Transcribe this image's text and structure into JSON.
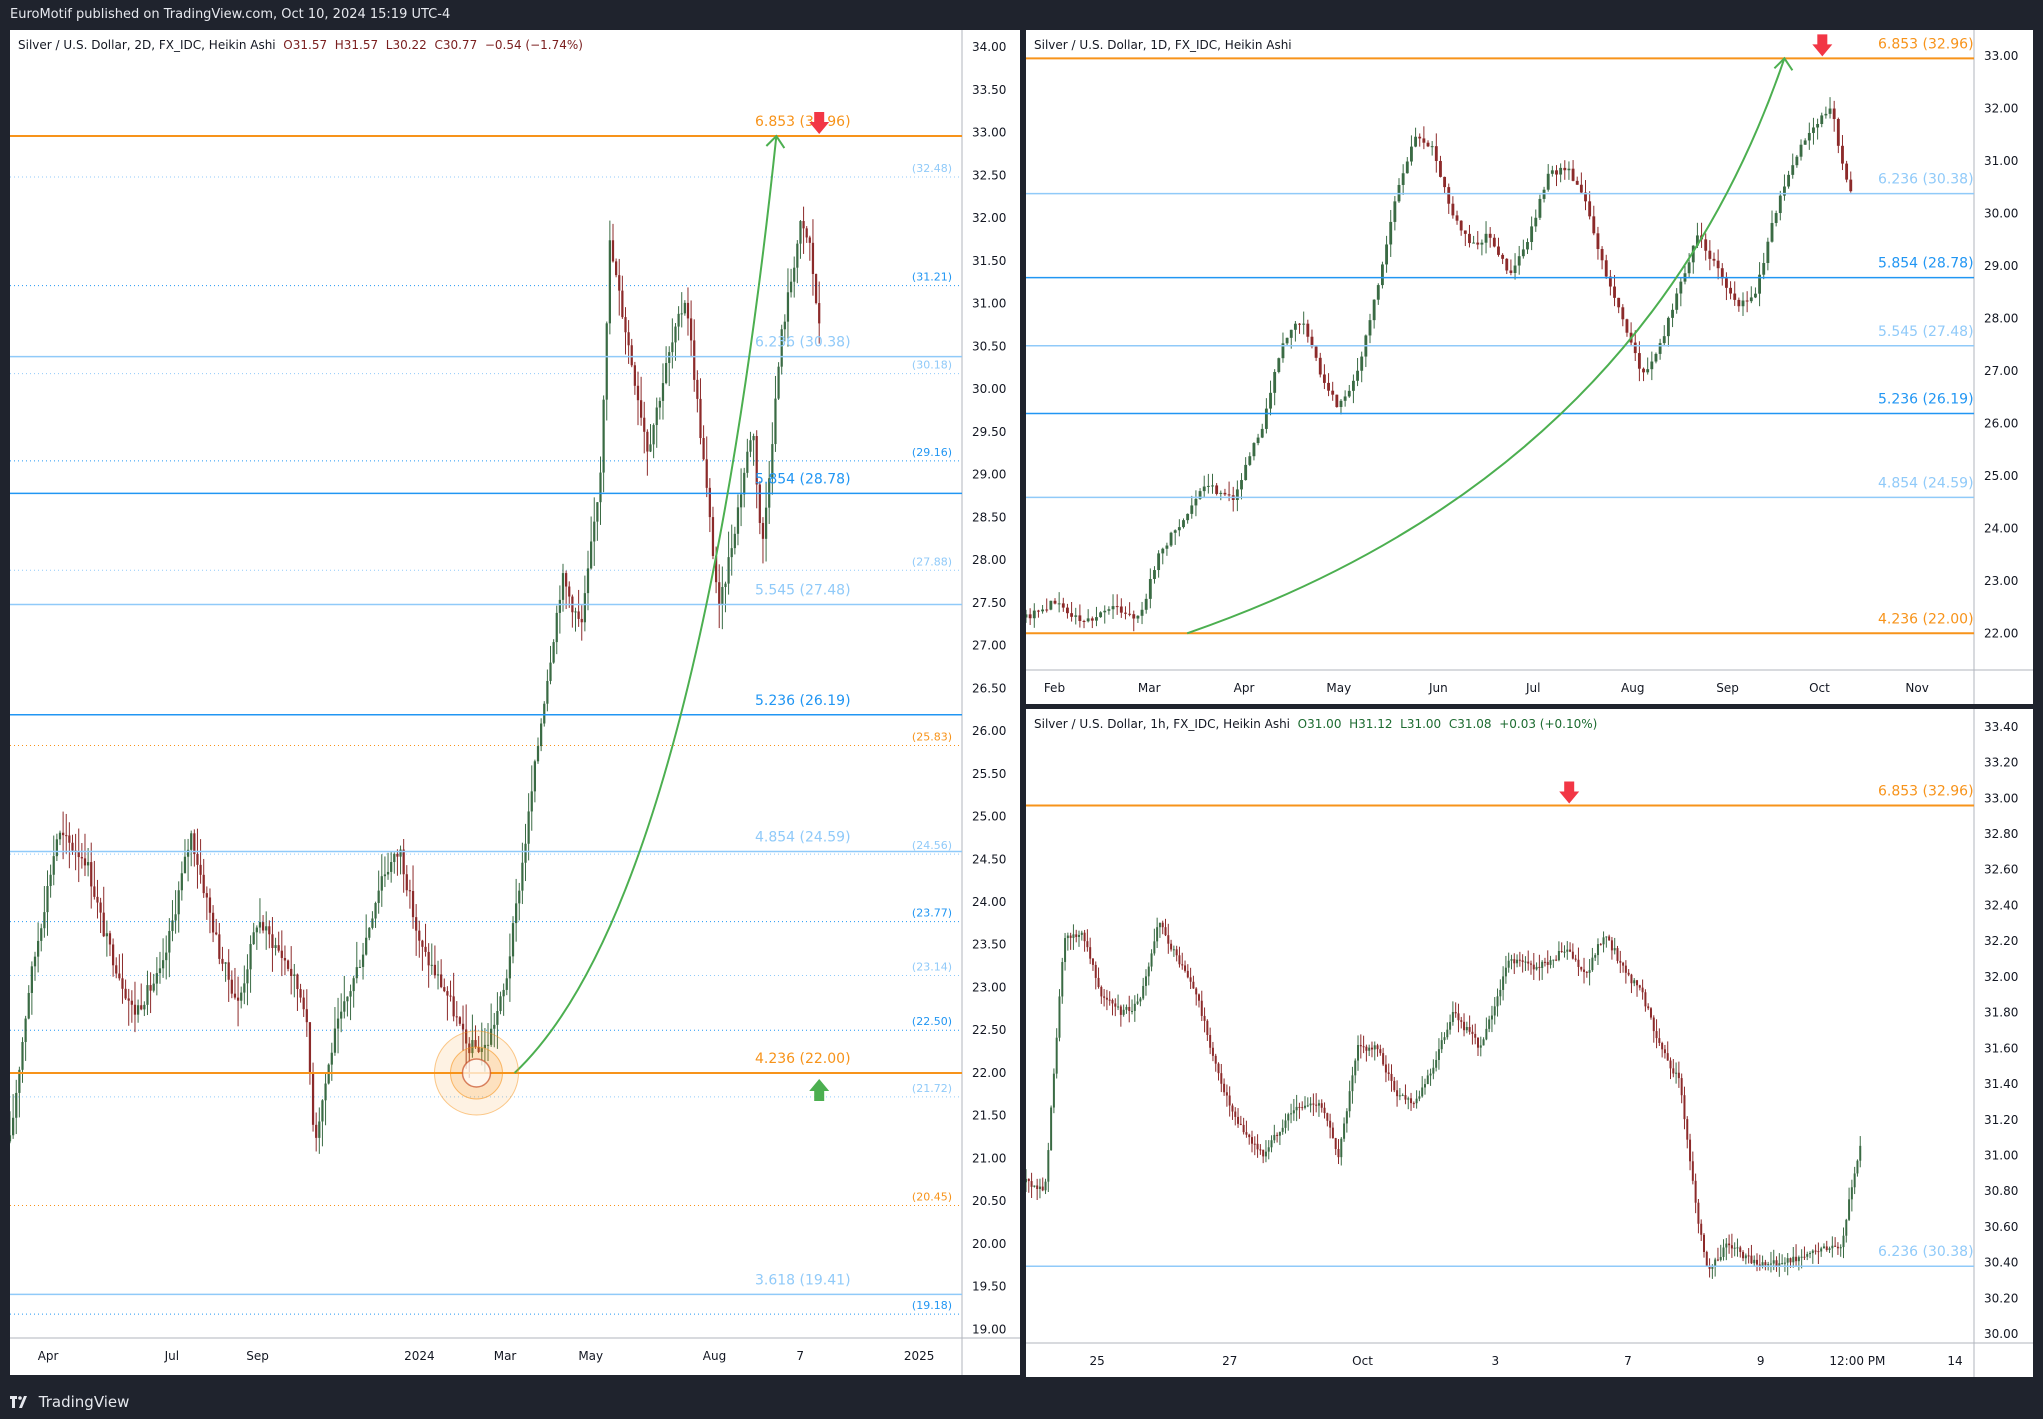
{
  "header": {
    "published": "EuroMotif published on TradingView.com, Oct 10, 2024 15:19 UTC-4"
  },
  "footer": {
    "brand": "TradingView"
  },
  "colors": {
    "orange": "#f7931a",
    "blue": "#2196f3",
    "lightblue": "#90caf9",
    "green_curve": "#4caf50",
    "up_candle": "#3a6b44",
    "down_candle": "#8c2a2a",
    "red_arrow": "#f23645",
    "green_arrow": "#4caf50"
  },
  "chart_data": [
    {
      "type": "candlestick",
      "id": "left",
      "legend": {
        "symbol": "Silver / U.S. Dollar, 2D, FX_IDC, Heikin Ashi",
        "o": "O31.57",
        "h": "H31.57",
        "l": "L30.22",
        "c": "C30.77",
        "chg": "−0.54 (−1.74%)"
      },
      "ylim": [
        18.9,
        34.2
      ],
      "y_ticks": [
        "34.00",
        "33.50",
        "33.00",
        "32.50",
        "32.00",
        "31.50",
        "31.00",
        "30.50",
        "30.00",
        "29.50",
        "29.00",
        "28.50",
        "28.00",
        "27.50",
        "27.00",
        "26.50",
        "26.00",
        "25.50",
        "25.00",
        "24.50",
        "24.00",
        "23.50",
        "23.00",
        "22.50",
        "22.00",
        "21.50",
        "21.00",
        "20.50",
        "20.00",
        "19.50",
        "19.00"
      ],
      "x_labels": [
        {
          "t": "Apr",
          "x": 0.04
        },
        {
          "t": "Jul",
          "x": 0.17
        },
        {
          "t": "Sep",
          "x": 0.26
        },
        {
          "t": "2024",
          "x": 0.43
        },
        {
          "t": "Mar",
          "x": 0.52
        },
        {
          "t": "May",
          "x": 0.61
        },
        {
          "t": "Aug",
          "x": 0.74
        },
        {
          "t": "7",
          "x": 0.83
        },
        {
          "t": "2025",
          "x": 0.955
        }
      ],
      "fib_levels": [
        {
          "label": "6.853 (32.96)",
          "value": 32.96,
          "color": "orange",
          "style": "solid",
          "width": 2
        },
        {
          "label": "6.236 (30.38)",
          "value": 30.38,
          "color": "lightblue",
          "style": "solid",
          "width": 1.5
        },
        {
          "label": "5.854 (28.78)",
          "value": 28.78,
          "color": "blue",
          "style": "solid",
          "width": 1.5
        },
        {
          "label": "5.545 (27.48)",
          "value": 27.48,
          "color": "lightblue",
          "style": "solid",
          "width": 1.5
        },
        {
          "label": "5.236 (26.19)",
          "value": 26.19,
          "color": "blue",
          "style": "solid",
          "width": 1.5
        },
        {
          "label": "4.854 (24.59)",
          "value": 24.59,
          "color": "lightblue",
          "style": "solid",
          "width": 1.5
        },
        {
          "label": "4.236 (22.00)",
          "value": 22.0,
          "color": "orange",
          "style": "solid",
          "width": 2
        },
        {
          "label": "3.618 (19.41)",
          "value": 19.41,
          "color": "lightblue",
          "style": "solid",
          "width": 1.5
        }
      ],
      "dotted_levels": [
        {
          "label": "(32.48)",
          "value": 32.48,
          "color": "lightblue"
        },
        {
          "label": "(31.21)",
          "value": 31.21,
          "color": "blue"
        },
        {
          "label": "(30.18)",
          "value": 30.18,
          "color": "lightblue"
        },
        {
          "label": "(29.16)",
          "value": 29.16,
          "color": "blue"
        },
        {
          "label": "(27.88)",
          "value": 27.88,
          "color": "lightblue"
        },
        {
          "label": "(25.83)",
          "value": 25.83,
          "color": "orange"
        },
        {
          "label": "(24.56)",
          "value": 24.56,
          "color": "lightblue"
        },
        {
          "label": "(23.77)",
          "value": 23.77,
          "color": "blue"
        },
        {
          "label": "(23.14)",
          "value": 23.14,
          "color": "lightblue"
        },
        {
          "label": "(22.50)",
          "value": 22.5,
          "color": "blue"
        },
        {
          "label": "(21.72)",
          "value": 21.72,
          "color": "lightblue"
        },
        {
          "label": "(20.45)",
          "value": 20.45,
          "color": "orange"
        },
        {
          "label": "(19.18)",
          "value": 19.18,
          "color": "blue"
        }
      ],
      "path": [
        [
          0.0,
          21.2
        ],
        [
          0.02,
          23.0
        ],
        [
          0.05,
          24.8
        ],
        [
          0.08,
          24.5
        ],
        [
          0.1,
          23.6
        ],
        [
          0.13,
          22.7
        ],
        [
          0.16,
          23.2
        ],
        [
          0.19,
          24.8
        ],
        [
          0.22,
          23.4
        ],
        [
          0.24,
          22.8
        ],
        [
          0.26,
          23.8
        ],
        [
          0.29,
          23.3
        ],
        [
          0.31,
          22.8
        ],
        [
          0.32,
          21.2
        ],
        [
          0.34,
          22.4
        ],
        [
          0.37,
          23.4
        ],
        [
          0.39,
          24.3
        ],
        [
          0.41,
          24.6
        ],
        [
          0.43,
          23.5
        ],
        [
          0.46,
          22.9
        ],
        [
          0.48,
          22.3
        ],
        [
          0.5,
          22.3
        ],
        [
          0.52,
          23.0
        ],
        [
          0.54,
          24.6
        ],
        [
          0.56,
          26.3
        ],
        [
          0.58,
          27.8
        ],
        [
          0.6,
          27.2
        ],
        [
          0.62,
          29.0
        ],
        [
          0.63,
          31.7
        ],
        [
          0.65,
          30.5
        ],
        [
          0.67,
          29.3
        ],
        [
          0.69,
          30.3
        ],
        [
          0.71,
          31.1
        ],
        [
          0.73,
          29.0
        ],
        [
          0.745,
          27.4
        ],
        [
          0.76,
          28.3
        ],
        [
          0.78,
          29.6
        ],
        [
          0.79,
          28.1
        ],
        [
          0.81,
          30.6
        ],
        [
          0.83,
          31.9
        ],
        [
          0.84,
          31.7
        ],
        [
          0.85,
          30.7
        ]
      ],
      "curve": {
        "x0": 0.53,
        "v0": 22.0,
        "cx": 0.72,
        "cv": 24.0,
        "x1": 0.805,
        "v1": 32.96
      },
      "arrows": [
        {
          "dir": "down",
          "x": 0.85,
          "value": 32.96
        },
        {
          "dir": "up",
          "x": 0.85,
          "value": 22.0
        }
      ],
      "circle": {
        "x": 0.49,
        "value": 22.0
      }
    },
    {
      "type": "candlestick",
      "id": "topright",
      "legend": {
        "symbol": "Silver / U.S. Dollar, 1D, FX_IDC, Heikin Ashi"
      },
      "ylim": [
        21.3,
        33.5
      ],
      "y_ticks": [
        "33.00",
        "32.00",
        "31.00",
        "30.00",
        "29.00",
        "28.00",
        "27.00",
        "26.00",
        "25.00",
        "24.00",
        "23.00",
        "22.00"
      ],
      "x_labels": [
        {
          "t": "Feb",
          "x": 0.03
        },
        {
          "t": "Mar",
          "x": 0.13
        },
        {
          "t": "Apr",
          "x": 0.23
        },
        {
          "t": "May",
          "x": 0.33
        },
        {
          "t": "Jun",
          "x": 0.435
        },
        {
          "t": "Jul",
          "x": 0.535
        },
        {
          "t": "Aug",
          "x": 0.64
        },
        {
          "t": "Sep",
          "x": 0.74
        },
        {
          "t": "Oct",
          "x": 0.837
        },
        {
          "t": "Nov",
          "x": 0.94
        }
      ],
      "fib_levels": [
        {
          "label": "6.853 (32.96)",
          "value": 32.96,
          "color": "orange",
          "style": "solid",
          "width": 2
        },
        {
          "label": "6.236 (30.38)",
          "value": 30.38,
          "color": "lightblue",
          "style": "solid",
          "width": 1.5
        },
        {
          "label": "5.854 (28.78)",
          "value": 28.78,
          "color": "blue",
          "style": "solid",
          "width": 1.5
        },
        {
          "label": "5.545 (27.48)",
          "value": 27.48,
          "color": "lightblue",
          "style": "solid",
          "width": 1.5
        },
        {
          "label": "5.236 (26.19)",
          "value": 26.19,
          "color": "blue",
          "style": "solid",
          "width": 1.5
        },
        {
          "label": "4.854 (24.59)",
          "value": 24.59,
          "color": "lightblue",
          "style": "solid",
          "width": 1.5
        },
        {
          "label": "4.236 (22.00)",
          "value": 22.0,
          "color": "orange",
          "style": "solid",
          "width": 2
        }
      ],
      "dotted_levels": [],
      "path": [
        [
          0.0,
          22.3
        ],
        [
          0.03,
          22.6
        ],
        [
          0.06,
          22.2
        ],
        [
          0.09,
          22.5
        ],
        [
          0.12,
          22.3
        ],
        [
          0.14,
          23.5
        ],
        [
          0.17,
          24.3
        ],
        [
          0.19,
          24.8
        ],
        [
          0.22,
          24.6
        ],
        [
          0.25,
          26.0
        ],
        [
          0.27,
          27.5
        ],
        [
          0.29,
          28.0
        ],
        [
          0.31,
          27.0
        ],
        [
          0.33,
          26.3
        ],
        [
          0.35,
          27.0
        ],
        [
          0.37,
          28.5
        ],
        [
          0.39,
          30.3
        ],
        [
          0.41,
          31.5
        ],
        [
          0.43,
          31.2
        ],
        [
          0.45,
          30.0
        ],
        [
          0.47,
          29.4
        ],
        [
          0.49,
          29.6
        ],
        [
          0.51,
          28.8
        ],
        [
          0.53,
          29.5
        ],
        [
          0.55,
          30.7
        ],
        [
          0.57,
          30.9
        ],
        [
          0.59,
          30.3
        ],
        [
          0.61,
          28.9
        ],
        [
          0.63,
          28.0
        ],
        [
          0.65,
          26.9
        ],
        [
          0.67,
          27.5
        ],
        [
          0.69,
          28.7
        ],
        [
          0.71,
          29.6
        ],
        [
          0.73,
          28.9
        ],
        [
          0.75,
          28.2
        ],
        [
          0.77,
          28.5
        ],
        [
          0.79,
          30.0
        ],
        [
          0.81,
          31.0
        ],
        [
          0.83,
          31.7
        ],
        [
          0.85,
          32.0
        ],
        [
          0.86,
          31.0
        ],
        [
          0.87,
          30.5
        ]
      ],
      "curve": {
        "x0": 0.17,
        "v0": 22.0,
        "cx": 0.65,
        "cv": 25.0,
        "x1": 0.8,
        "v1": 32.96
      },
      "arrows": [
        {
          "dir": "down",
          "x": 0.84,
          "value": 32.96
        }
      ]
    },
    {
      "type": "candlestick",
      "id": "bottomright",
      "legend": {
        "symbol": "Silver / U.S. Dollar, 1h, FX_IDC, Heikin Ashi",
        "o": "O31.00",
        "h": "H31.12",
        "l": "L31.00",
        "c": "C31.08",
        "chg": "+0.03 (+0.10%)"
      },
      "ylim": [
        29.95,
        33.5
      ],
      "y_ticks": [
        "33.40",
        "33.20",
        "33.00",
        "32.80",
        "32.60",
        "32.40",
        "32.20",
        "32.00",
        "31.80",
        "31.60",
        "31.40",
        "31.20",
        "31.00",
        "30.80",
        "30.60",
        "30.40",
        "30.20",
        "30.00"
      ],
      "x_labels": [
        {
          "t": "25",
          "x": 0.075
        },
        {
          "t": "27",
          "x": 0.215
        },
        {
          "t": "Oct",
          "x": 0.355
        },
        {
          "t": "3",
          "x": 0.495
        },
        {
          "t": "7",
          "x": 0.635
        },
        {
          "t": "9",
          "x": 0.775
        },
        {
          "t": "12:00 PM",
          "x": 0.877
        },
        {
          "t": "14",
          "x": 0.98
        }
      ],
      "fib_levels": [
        {
          "label": "6.853 (32.96)",
          "value": 32.96,
          "color": "orange",
          "style": "solid",
          "width": 2
        },
        {
          "label": "6.236 (30.38)",
          "value": 30.38,
          "color": "lightblue",
          "style": "solid",
          "width": 1.5
        }
      ],
      "dotted_levels": [],
      "path": [
        [
          0.0,
          30.85
        ],
        [
          0.02,
          30.8
        ],
        [
          0.04,
          32.2
        ],
        [
          0.06,
          32.25
        ],
        [
          0.08,
          31.9
        ],
        [
          0.1,
          31.8
        ],
        [
          0.12,
          31.85
        ],
        [
          0.14,
          32.3
        ],
        [
          0.16,
          32.1
        ],
        [
          0.18,
          31.9
        ],
        [
          0.2,
          31.5
        ],
        [
          0.22,
          31.2
        ],
        [
          0.25,
          31.0
        ],
        [
          0.28,
          31.25
        ],
        [
          0.31,
          31.3
        ],
        [
          0.33,
          31.0
        ],
        [
          0.35,
          31.6
        ],
        [
          0.37,
          31.6
        ],
        [
          0.39,
          31.35
        ],
        [
          0.41,
          31.3
        ],
        [
          0.43,
          31.5
        ],
        [
          0.45,
          31.8
        ],
        [
          0.48,
          31.6
        ],
        [
          0.51,
          32.1
        ],
        [
          0.54,
          32.05
        ],
        [
          0.57,
          32.15
        ],
        [
          0.59,
          32.0
        ],
        [
          0.61,
          32.25
        ],
        [
          0.63,
          32.05
        ],
        [
          0.65,
          31.9
        ],
        [
          0.67,
          31.6
        ],
        [
          0.69,
          31.4
        ],
        [
          0.71,
          30.6
        ],
        [
          0.72,
          30.35
        ],
        [
          0.74,
          30.5
        ],
        [
          0.77,
          30.4
        ],
        [
          0.8,
          30.4
        ],
        [
          0.83,
          30.45
        ],
        [
          0.86,
          30.5
        ],
        [
          0.87,
          30.8
        ],
        [
          0.88,
          31.05
        ]
      ],
      "arrows": [
        {
          "dir": "down",
          "x": 0.573,
          "value": 32.96
        }
      ]
    }
  ]
}
